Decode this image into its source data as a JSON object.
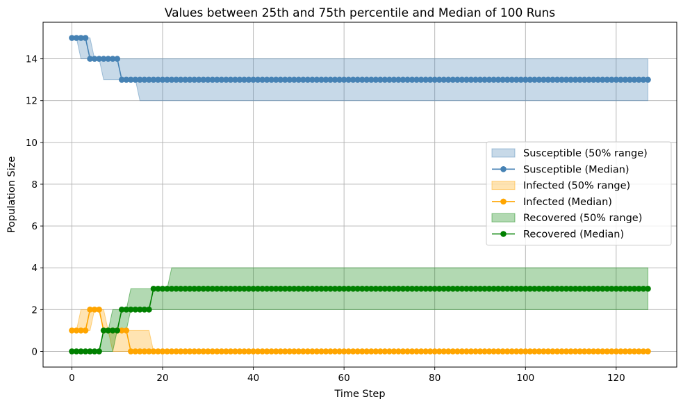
{
  "chart_data": {
    "type": "line",
    "title": "Values between 25th and 75th percentile and Median of 100 Runs",
    "xlabel": "Time Step",
    "ylabel": "Population Size",
    "xlim": [
      -6.35,
      133.35
    ],
    "ylim": [
      -0.75,
      15.75
    ],
    "xticks": [
      0,
      20,
      40,
      60,
      80,
      100,
      120
    ],
    "yticks": [
      0,
      2,
      4,
      6,
      8,
      10,
      12,
      14
    ],
    "grid": true,
    "legend_position": "center-right",
    "x_range": [
      0,
      127
    ],
    "series": [
      {
        "name": "Susceptible",
        "color": "#4682b4",
        "median_label": "Susceptible (Median)",
        "band_label": "Susceptible (50% range)",
        "median_steps": [
          [
            0,
            15
          ],
          [
            4,
            14
          ],
          [
            11,
            13
          ]
        ],
        "low_steps": [
          [
            0,
            15
          ],
          [
            2,
            14
          ],
          [
            7,
            13
          ],
          [
            15,
            12
          ]
        ],
        "high_steps": [
          [
            0,
            15
          ],
          [
            5,
            14
          ],
          [
            11,
            14
          ]
        ]
      },
      {
        "name": "Infected",
        "color": "#ffa500",
        "median_label": "Infected (Median)",
        "band_label": "Infected (50% range)",
        "median_steps": [
          [
            0,
            1
          ],
          [
            4,
            2
          ],
          [
            7,
            1
          ],
          [
            13,
            0
          ]
        ],
        "low_steps": [
          [
            0,
            1
          ],
          [
            3,
            1
          ],
          [
            5,
            2
          ],
          [
            7,
            1
          ],
          [
            9,
            0
          ]
        ],
        "high_steps": [
          [
            0,
            1
          ],
          [
            2,
            2
          ],
          [
            7,
            2
          ],
          [
            8,
            1
          ],
          [
            17,
            1
          ],
          [
            18,
            0
          ]
        ]
      },
      {
        "name": "Recovered",
        "color": "#008000",
        "median_steps": [
          [
            0,
            0
          ],
          [
            7,
            1
          ],
          [
            11,
            2
          ],
          [
            18,
            3
          ]
        ],
        "median_label": "Recovered (Median)",
        "band_label": "Recovered (50% range)",
        "low_steps": [
          [
            0,
            0
          ],
          [
            7,
            0
          ],
          [
            10,
            1
          ],
          [
            13,
            2
          ]
        ],
        "high_steps": [
          [
            0,
            0
          ],
          [
            7,
            1
          ],
          [
            9,
            2
          ],
          [
            13,
            3
          ],
          [
            22,
            4
          ]
        ]
      }
    ]
  }
}
